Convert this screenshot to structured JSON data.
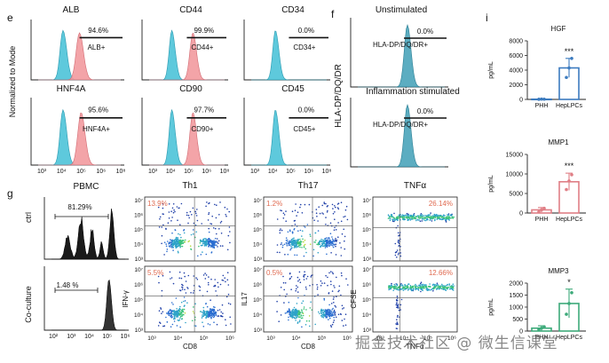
{
  "panel_letters": {
    "e": "e",
    "f": "f",
    "g": "g",
    "i": "i"
  },
  "colors": {
    "cyan": "#4DC3D8",
    "cyan_edge": "#2A9AB0",
    "red": "#F29A9F",
    "red_edge": "#D26A72",
    "teal": "#3F9FB6",
    "blue": "#3C7BBF",
    "pink": "#E07F86",
    "green": "#3DAA7A",
    "orange_red": "#E06A50"
  },
  "panel_e": {
    "ylabel": "Normalized to Mode",
    "x_ticks": [
      "10³",
      "10⁴",
      "10⁵",
      "10⁶",
      "10⁸"
    ],
    "hists": [
      {
        "title": "ALB",
        "pct": "94.6%",
        "gate": "ALB+",
        "cyan_pos": 0.3,
        "red_pos": 0.5
      },
      {
        "title": "CD44",
        "pct": "99.9%",
        "gate": "CD44+",
        "cyan_pos": 0.3,
        "red_pos": 0.58
      },
      {
        "title": "CD34",
        "pct": "0.0%",
        "gate": "CD34+",
        "cyan_pos": 0.32,
        "red_pos": null
      },
      {
        "title": "HNF4A",
        "pct": "95.6%",
        "gate": "HNF4A+",
        "cyan_pos": 0.3,
        "red_pos": 0.52
      },
      {
        "title": "CD90",
        "pct": "97.7%",
        "gate": "CD90+",
        "cyan_pos": 0.3,
        "red_pos": 0.58
      },
      {
        "title": "CD45",
        "pct": "0.0%",
        "gate": "CD45+",
        "cyan_pos": 0.32,
        "red_pos": null
      }
    ]
  },
  "panel_f": {
    "ylabel": "HLA-DP/DQ/DR",
    "hists": [
      {
        "title": "Unstimulated",
        "pct": "0.0%",
        "gate": "HLA-DP/DQ/DR+"
      },
      {
        "title": "Inflammation stimulated",
        "pct": "0.0%",
        "gate": "HLA-DP/DQ/DR+"
      }
    ]
  },
  "panel_g": {
    "pbmc_title": "PBMC",
    "row_labels": [
      "ctrl",
      "Co-culture"
    ],
    "pbmc_pct": [
      "81.29%",
      "1.48 %"
    ],
    "pbmc_x_ticks": [
      "10²",
      "10³",
      "10⁴",
      "10⁵",
      "10⁶"
    ],
    "col_titles": [
      "Th1",
      "Th17",
      "TNFα"
    ],
    "y_ticks": [
      "10⁷",
      "10⁶",
      "10⁵",
      "10⁴",
      "10³"
    ],
    "x_ticks": [
      "10³",
      "10⁴",
      "10⁵",
      "10⁶"
    ],
    "y_axis_labels": [
      "IFN-γ",
      "IL17",
      "CFSE"
    ],
    "x_axis_labels": [
      "CD8",
      "CD8",
      "TNFα"
    ],
    "quad_pct": [
      [
        "13.9%",
        "1.2%",
        "26.14%"
      ],
      [
        "5.5%",
        "0.5%",
        "12.66%"
      ]
    ]
  },
  "panel_i": {
    "chart_data": [
      {
        "type": "bar",
        "title": "HGF",
        "ylabel": "pg/mL",
        "categories": [
          "PHH",
          "HepLPCs"
        ],
        "values": [
          30,
          4300
        ],
        "errors": [
          20,
          1300
        ],
        "points": [
          [
            20,
            40,
            30
          ],
          [
            3000,
            4300,
            5600
          ]
        ],
        "ylim": [
          0,
          8000
        ],
        "ticks": [
          "0",
          "2000",
          "4000",
          "6000",
          "8000"
        ],
        "significance": "***",
        "colors": [
          "#3C7BBF",
          "#3C7BBF"
        ]
      },
      {
        "type": "bar",
        "title": "MMP1",
        "ylabel": "pg/mL",
        "categories": [
          "PHH",
          "HepLPCs"
        ],
        "values": [
          800,
          8000
        ],
        "errors": [
          600,
          2200
        ],
        "points": [
          [
            300,
            800,
            1200
          ],
          [
            6000,
            8200,
            9800
          ]
        ],
        "ylim": [
          0,
          15000
        ],
        "ticks": [
          "0",
          "5000",
          "10000",
          "15000"
        ],
        "significance": "***",
        "colors": [
          "#E07F86",
          "#E07F86"
        ]
      },
      {
        "type": "bar",
        "title": "MMP3",
        "ylabel": "pg/mL",
        "categories": [
          "PHH",
          "HepLPCs"
        ],
        "values": [
          120,
          1150
        ],
        "errors": [
          100,
          600
        ],
        "points": [
          [
            60,
            120,
            180
          ],
          [
            700,
            1150,
            1600
          ]
        ],
        "ylim": [
          0,
          2000
        ],
        "ticks": [
          "0",
          "500",
          "1000",
          "1500",
          "2000"
        ],
        "significance": "*",
        "colors": [
          "#3DAA7A",
          "#3DAA7A"
        ]
      }
    ]
  },
  "watermark": "掘金技术社区 @ 微生信课堂"
}
